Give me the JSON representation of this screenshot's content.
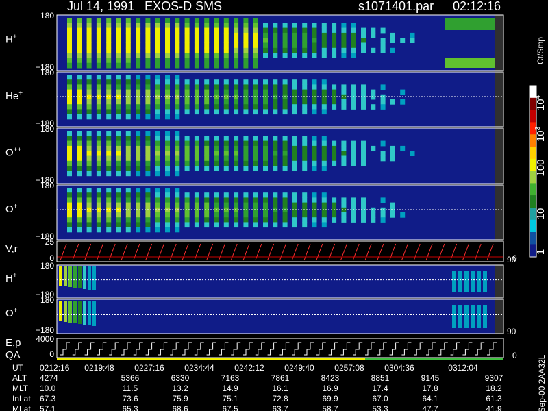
{
  "header": {
    "title": "Jul 14, 1991   EXOS-D SMS",
    "file": "s1071401.par",
    "time": "02:12:16"
  },
  "panels": [
    {
      "name": "H",
      "sup": "+",
      "top": "180",
      "bottom": "−180"
    },
    {
      "name": "He",
      "sup": "+",
      "top": "180",
      "bottom": "−180"
    },
    {
      "name": "O",
      "sup": "++",
      "top": "180",
      "bottom": "−180"
    },
    {
      "name": "O",
      "sup": "+",
      "top": "180",
      "bottom": "−180"
    },
    {
      "name": "V,r",
      "top": "25",
      "bottom": "0",
      "right_top": "90",
      "right_bottom": "0"
    },
    {
      "name": "H",
      "sup": "+",
      "top": "180",
      "bottom": "−180"
    },
    {
      "name": "O",
      "sup": "+",
      "top": "180",
      "bottom": "−180",
      "right_top": "90"
    },
    {
      "name": "E,p",
      "name2": "QA",
      "top": "4000",
      "bottom": "0",
      "right_bottom": "0"
    }
  ],
  "colorbar": {
    "unit": "Ct/Smp",
    "labels": [
      {
        "base": "10",
        "sup": "4"
      },
      {
        "base": "10",
        "sup": "3"
      },
      {
        "base": "100"
      },
      {
        "base": "10"
      },
      {
        "base": "1"
      }
    ]
  },
  "table": {
    "row_labels": [
      "UT",
      "ALT",
      "MLT",
      "InLat",
      "MLat"
    ],
    "rows": [
      [
        "0212:16",
        "0219:48",
        "0227:16",
        "0234:44",
        "0242:12",
        "0249:40",
        "0257:08",
        "0304:36",
        "0312:04"
      ],
      [
        "4274",
        "5366",
        "6330",
        "7163",
        "7861",
        "8423",
        "8851",
        "9145",
        "9307"
      ],
      [
        "10.0",
        "11.5",
        "13.2",
        "14.9",
        "16.1",
        "16.9",
        "17.4",
        "17.8",
        "18.2"
      ],
      [
        "67.3",
        "73.6",
        "75.9",
        "75.1",
        "72.8",
        "69.9",
        "67.0",
        "64.1",
        "61.3"
      ],
      [
        "57.1",
        "65.3",
        "68.6",
        "67.5",
        "63.7",
        "58.7",
        "53.3",
        "47.7",
        "41.9"
      ]
    ]
  },
  "footer": "Sep-00 2AA32L"
}
